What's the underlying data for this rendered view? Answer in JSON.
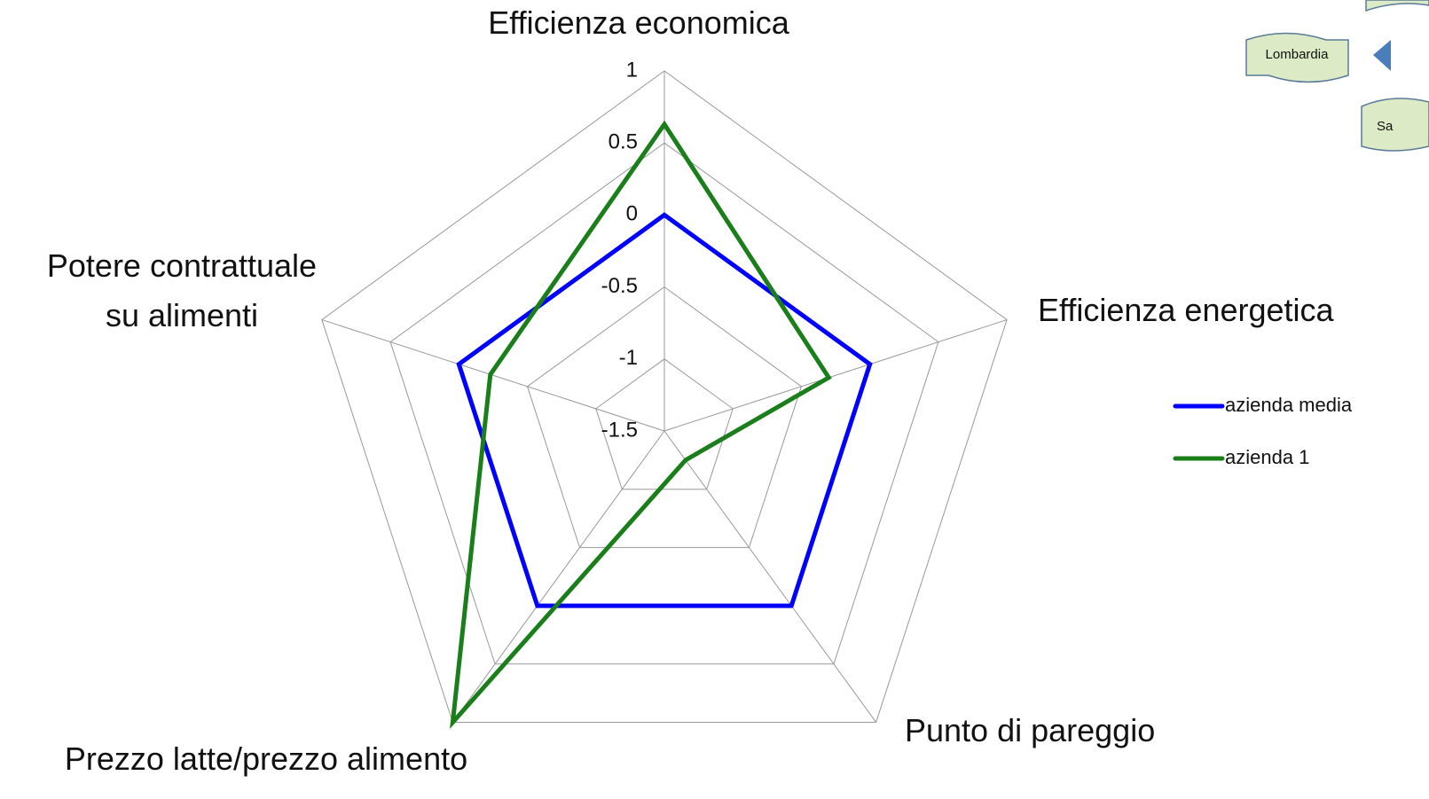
{
  "chart_data": {
    "type": "radar",
    "categories": [
      "Efficienza economica",
      "Efficienza energetica",
      "Punto di pareggio",
      "Prezzo latte/prezzo alimento",
      "Potere contrattuale\nsu alimenti"
    ],
    "series": [
      {
        "name": "azienda media",
        "color": "#0000ff",
        "values": [
          0,
          0,
          0,
          0,
          0
        ]
      },
      {
        "name": "azienda 1",
        "color": "#1a7f1a",
        "values": [
          0.63,
          -0.3,
          -1.25,
          1,
          -0.23
        ]
      }
    ],
    "ylim": [
      -1.5,
      1
    ],
    "yticks": [
      -1.5,
      -1,
      -0.5,
      0,
      0.5,
      1
    ],
    "grid": true,
    "legend": "right",
    "buttons": [
      "Lombardia",
      "Sa"
    ]
  }
}
